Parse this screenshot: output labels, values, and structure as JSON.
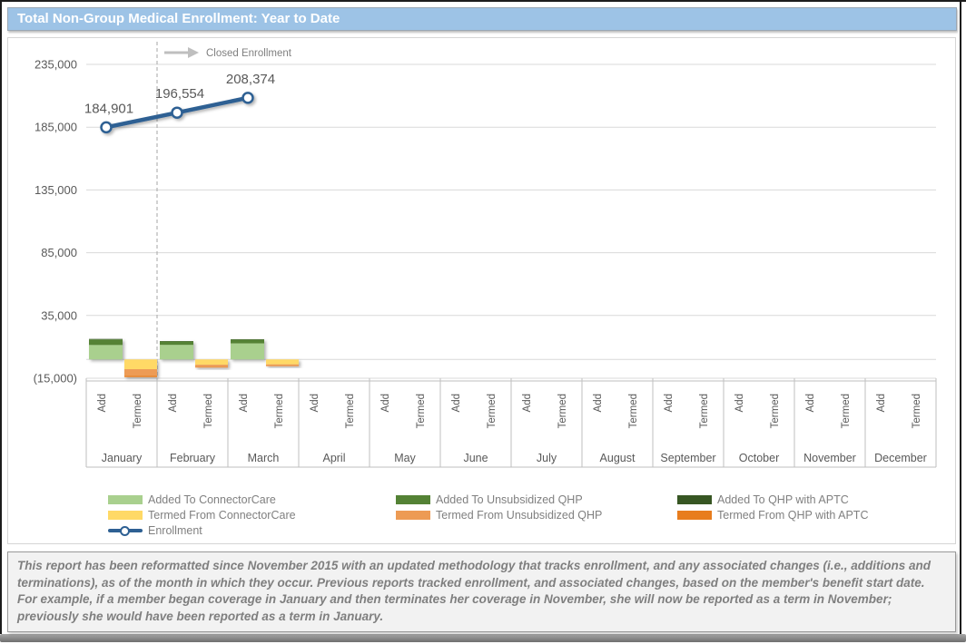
{
  "header": {
    "title": "Total Non-Group Medical Enrollment: Year to Date"
  },
  "annotation": {
    "label": "Closed Enrollment"
  },
  "chart_data": {
    "type": "bar+line combo",
    "months": [
      "January",
      "February",
      "March",
      "April",
      "May",
      "June",
      "July",
      "August",
      "September",
      "October",
      "November",
      "December"
    ],
    "sub_axis_labels": [
      "Add",
      "Termed"
    ],
    "y_ticks": [
      "235,000",
      "185,000",
      "135,000",
      "85,000",
      "35,000",
      "(15,000)"
    ],
    "y_tick_values": [
      235000,
      185000,
      135000,
      85000,
      35000,
      -15000
    ],
    "ylim": [
      -15000,
      235000
    ],
    "grid": true,
    "legend_position": "bottom",
    "closed_enrollment_divider_after_month": "January",
    "add_series": [
      {
        "name": "Added To ConnectorCare",
        "color": "#a9d08e",
        "values": [
          11500,
          11600,
          12800,
          0,
          0,
          0,
          0,
          0,
          0,
          0,
          0,
          0
        ]
      },
      {
        "name": "Added To Unsubsidized QHP",
        "color": "#548235",
        "values": [
          4400,
          2700,
          3000,
          0,
          0,
          0,
          0,
          0,
          0,
          0,
          0,
          0
        ]
      },
      {
        "name": "Added To QHP with APTC",
        "color": "#375623",
        "values": [
          400,
          300,
          300,
          0,
          0,
          0,
          0,
          0,
          0,
          0,
          0,
          0
        ]
      }
    ],
    "termed_series": [
      {
        "name": "Termed From ConnectorCare",
        "color": "#ffd966",
        "values": [
          7800,
          4300,
          4000,
          0,
          0,
          0,
          0,
          0,
          0,
          0,
          0,
          0
        ]
      },
      {
        "name": "Termed From Unsubsidized QHP",
        "color": "#ed9b54",
        "values": [
          5300,
          1800,
          1100,
          0,
          0,
          0,
          0,
          0,
          0,
          0,
          0,
          0
        ]
      },
      {
        "name": "Termed From QHP with APTC",
        "color": "#e87d1e",
        "values": [
          1000,
          400,
          300,
          0,
          0,
          0,
          0,
          0,
          0,
          0,
          0,
          0
        ]
      }
    ],
    "enrollment": {
      "name": "Enrollment",
      "color": "#2e6093",
      "values": [
        184901,
        196554,
        208374,
        null,
        null,
        null,
        null,
        null,
        null,
        null,
        null,
        null
      ],
      "labels": [
        "184,901",
        "196,554",
        "208,374"
      ]
    }
  },
  "legend": {
    "items": [
      {
        "label": "Added To ConnectorCare",
        "color": "#a9d08e",
        "type": "swatch",
        "col": 0,
        "row": 0
      },
      {
        "label": "Added To Unsubsidized QHP",
        "color": "#548235",
        "type": "swatch",
        "col": 1,
        "row": 0
      },
      {
        "label": "Added To QHP with APTC",
        "color": "#375623",
        "type": "swatch",
        "col": 2,
        "row": 0
      },
      {
        "label": "Termed From ConnectorCare",
        "color": "#ffd966",
        "type": "swatch",
        "col": 0,
        "row": 1
      },
      {
        "label": "Termed From Unsubsidized QHP",
        "color": "#ed9b54",
        "type": "swatch",
        "col": 1,
        "row": 1
      },
      {
        "label": "Termed From QHP with APTC",
        "color": "#e87d1e",
        "type": "swatch",
        "col": 2,
        "row": 1
      },
      {
        "label": "Enrollment",
        "color": "#2e6093",
        "type": "line",
        "col": 0,
        "row": 2
      }
    ]
  },
  "footnote": {
    "text": "This report has been reformatted since November 2015 with an updated methodology that tracks enrollment, and any associated changes (i.e., additions and terminations), as of the month in which they occur.  Previous reports tracked enrollment, and associated changes, based on the member's benefit start date.  For example, if a member began coverage in January and then terminates her coverage in November, she will now be reported as a term in November; previously she would have been reported as a term in January."
  }
}
